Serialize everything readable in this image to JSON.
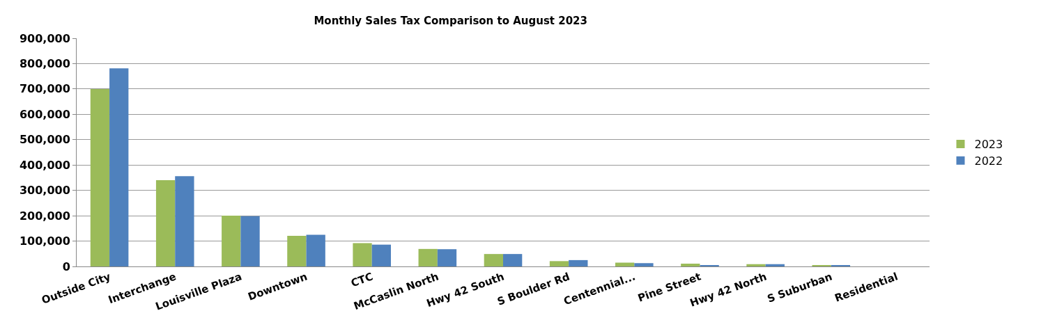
{
  "chart_data": {
    "type": "bar",
    "title": "Monthly Sales Tax Comparison to August 2023",
    "categories": [
      "Outside City",
      "Interchange",
      "Louisville Plaza",
      "Downtown",
      "CTC",
      "McCaslin North",
      "Hwy 42 South",
      "S Boulder Rd",
      "Centennial...",
      "Pine Street",
      "Hwy 42 North",
      "S Suburban",
      "Residential"
    ],
    "series": [
      {
        "name": "2023",
        "color": "#9bbb59",
        "values": [
          700000,
          340000,
          200000,
          121000,
          92000,
          69000,
          49000,
          21000,
          15000,
          11000,
          9000,
          5000,
          null
        ]
      },
      {
        "name": "2022",
        "color": "#4f81bd",
        "values": [
          781000,
          356000,
          198000,
          125000,
          86000,
          68000,
          49000,
          25000,
          13000,
          5000,
          9000,
          4000,
          null
        ]
      }
    ],
    "ylim": [
      0,
      900000
    ],
    "yticks": [
      {
        "value": 0,
        "label": "0"
      },
      {
        "value": 100000,
        "label": "100,000"
      },
      {
        "value": 200000,
        "label": "200,000"
      },
      {
        "value": 300000,
        "label": "300,000"
      },
      {
        "value": 400000,
        "label": "400,000"
      },
      {
        "value": 500000,
        "label": "500,000"
      },
      {
        "value": 600000,
        "label": "600,000"
      },
      {
        "value": 700000,
        "label": "700,000"
      },
      {
        "value": 800000,
        "label": "800,000"
      },
      {
        "value": 900000,
        "label": "900,000"
      }
    ],
    "grid": "y",
    "legend": "right"
  }
}
